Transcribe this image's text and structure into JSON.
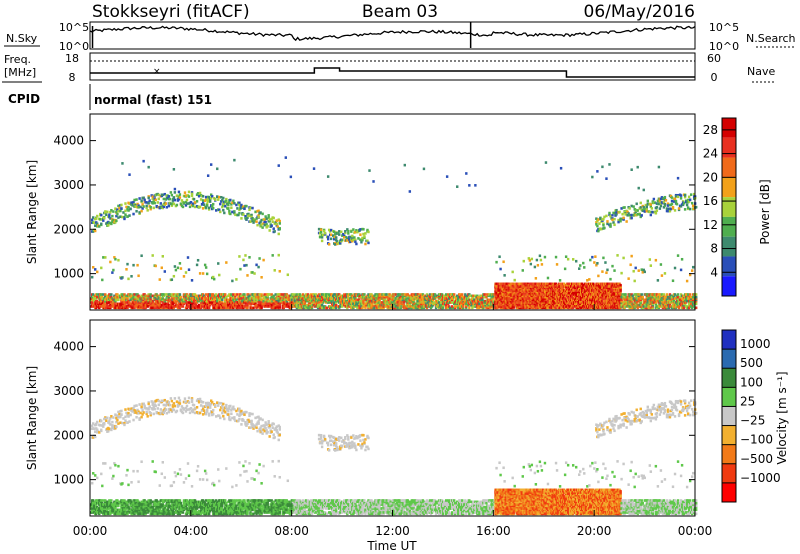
{
  "header": {
    "radar": "Stokkseyri (fitACF)",
    "beam": "Beam 03",
    "date": "06/May/2016"
  },
  "left_labels": {
    "nsky": "N.Sky",
    "freq": "Freq.",
    "freq_unit": "[MHz]",
    "cpid": "CPID"
  },
  "right_labels": {
    "nsearch": "N.Search",
    "nave": "Nave"
  },
  "ticks": {
    "noise_top": "10^5",
    "noise_bottom": "10^0",
    "freq_top": "18",
    "freq_bottom": "8",
    "nave_top": "60",
    "nave_bottom": "0"
  },
  "cpid_text": "normal (fast) 151",
  "colors": {
    "power": [
      "#1a1aff",
      "#2a4fb8",
      "#3d8a6e",
      "#4fae4f",
      "#a8d23a",
      "#f2a11a",
      "#f06a1a",
      "#e83020",
      "#d40000"
    ],
    "velocity": [
      "#ff0000",
      "#f03a10",
      "#f27a18",
      "#f2b030",
      "#c8c8c8",
      "#c8c8c8",
      "#5fc84a",
      "#3a8a3a",
      "#2a6ab0",
      "#2030c0"
    ]
  },
  "chart_data": [
    {
      "type": "heatmap",
      "title": "",
      "xlabel": "",
      "ylabel": "Slant Range [km]",
      "x_range_hours": [
        0,
        24
      ],
      "ylim": [
        180,
        4600
      ],
      "x_ticks": [
        "00:00",
        "04:00",
        "08:00",
        "12:00",
        "16:00",
        "20:00",
        "00:00"
      ],
      "y_ticks": [
        1000,
        2000,
        3000,
        4000
      ],
      "colorbar": {
        "label": "Power [dB]",
        "ticks": [
          "4",
          "8",
          "12",
          "16",
          "20",
          "24",
          "28"
        ],
        "range": [
          0,
          30
        ]
      },
      "features": [
        {
          "name": "E-region band",
          "hours": [
            0,
            24
          ],
          "range_km": [
            200,
            600
          ],
          "power_db": 24
        },
        {
          "name": "F-region arc 1",
          "hours": [
            0,
            7.5
          ],
          "range_km": [
            1500,
            2700
          ],
          "power_db": 12
        },
        {
          "name": "F-region arc 2",
          "hours": [
            9,
            11
          ],
          "range_km": [
            1500,
            2200
          ],
          "power_db": 14
        },
        {
          "name": "F-region arc 3",
          "hours": [
            20,
            24
          ],
          "range_km": [
            1800,
            2700
          ],
          "power_db": 10
        },
        {
          "name": "enhanced band",
          "hours": [
            16,
            21
          ],
          "range_km": [
            200,
            700
          ],
          "power_db": 28
        }
      ]
    },
    {
      "type": "heatmap",
      "title": "",
      "xlabel": "Time UT",
      "ylabel": "Slant Range [km]",
      "x_range_hours": [
        0,
        24
      ],
      "ylim": [
        180,
        4600
      ],
      "x_ticks": [
        "00:00",
        "04:00",
        "08:00",
        "12:00",
        "16:00",
        "20:00",
        "00:00"
      ],
      "y_ticks": [
        1000,
        2000,
        3000,
        4000
      ],
      "colorbar": {
        "label": "Velocity [m s⁻¹]",
        "ticks": [
          "1000",
          "500",
          "100",
          "25",
          "−25",
          "−100",
          "−500",
          "−1000"
        ]
      },
      "features": [
        {
          "name": "ground scatter arcs",
          "velocity": 0
        },
        {
          "name": "morning E-region",
          "hours": [
            0,
            8
          ],
          "velocity": 200
        },
        {
          "name": "afternoon E-region",
          "hours": [
            16,
            21
          ],
          "velocity": -300
        }
      ]
    }
  ]
}
